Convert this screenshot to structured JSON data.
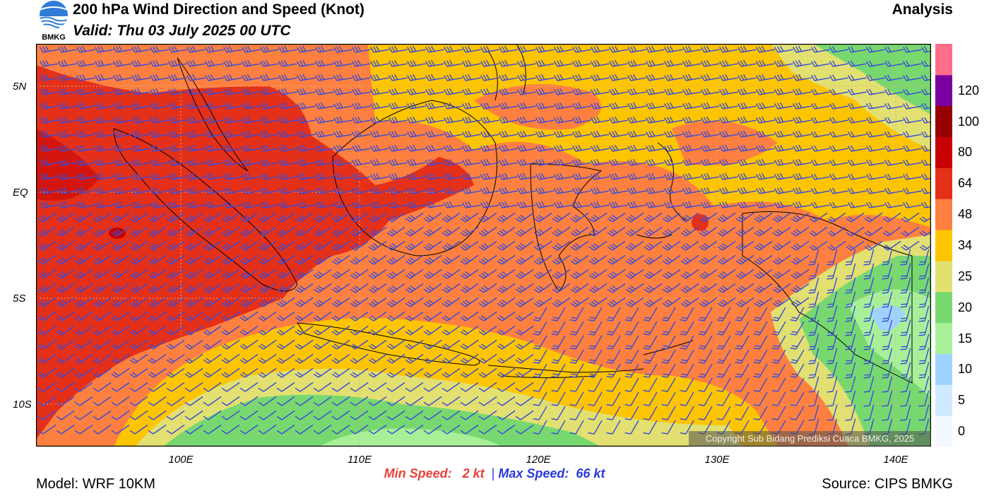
{
  "header": {
    "title": "200 hPa Wind Direction and Speed (Knot)",
    "valid": "Valid: Thu 03 July 2025 00 UTC",
    "analysis_label": "Analysis",
    "logo_text": "BMKG"
  },
  "map": {
    "lat_labels": [
      "5N",
      "EQ",
      "5S",
      "10S"
    ],
    "lon_labels": [
      "100E",
      "110E",
      "120E",
      "130E",
      "140E"
    ],
    "copyright": "Copyright Sub Bidang Prediksi Cuaca BMKG, 2025",
    "barb_color": "#3a4bd8",
    "coast_color": "#000000",
    "grid_color": "#d9b07a"
  },
  "colorbar": {
    "levels": [
      "0",
      "5",
      "10",
      "15",
      "20",
      "25",
      "34",
      "48",
      "64",
      "80",
      "100",
      "120"
    ],
    "colors": [
      "#f4f8ff",
      "#cfeaff",
      "#9fd3ff",
      "#a8f098",
      "#78d870",
      "#e2e070",
      "#fdc500",
      "#fd8040",
      "#e53019",
      "#c60000",
      "#960000",
      "#7a00a0",
      "#ff6f8c"
    ]
  },
  "footer": {
    "min_speed": "Min Speed:   2 kt",
    "separator": "|",
    "max_speed": "Max Speed:  66 kt",
    "model": "Model: WRF 10KM",
    "source": "Source: CIPS BMKG"
  }
}
